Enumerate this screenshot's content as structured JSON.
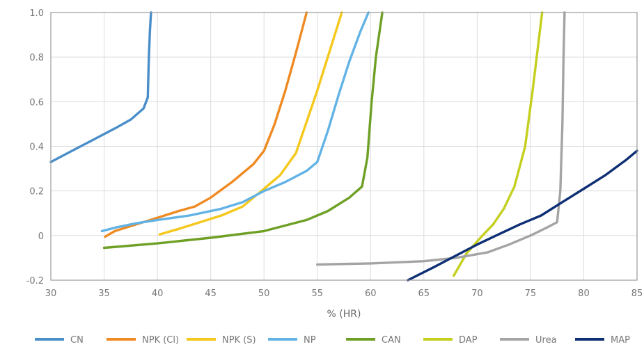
{
  "chart_data": {
    "type": "line",
    "xlabel": "% (HR)",
    "xlim": [
      30,
      85
    ],
    "ylim": [
      -0.2,
      1.0
    ],
    "x_ticks": [
      30,
      35,
      40,
      45,
      50,
      55,
      60,
      65,
      70,
      75,
      80,
      85
    ],
    "x_tick_labels": [
      "30",
      "35",
      "40",
      "45",
      "50",
      "55",
      "60",
      "65",
      "70",
      "75",
      "80",
      "85"
    ],
    "y_ticks": [
      -0.2,
      0,
      0.2,
      0.4,
      0.6,
      0.8,
      1.0
    ],
    "y_tick_labels": [
      "-0.2",
      "0",
      "0.2",
      "0.4",
      "0.6",
      "0.8",
      "1.0"
    ],
    "grid": true,
    "legend_position": "bottom",
    "series": [
      {
        "name": "CN",
        "color": "#4a8ec9",
        "x": [
          30,
          32,
          34,
          36,
          37.5,
          38.7,
          39.1,
          39.2,
          39.3,
          39.4
        ],
        "y": [
          0.33,
          0.38,
          0.43,
          0.48,
          0.52,
          0.57,
          0.62,
          0.8,
          0.92,
          1.0
        ]
      },
      {
        "name": "NPK (Cl)",
        "color": "#ef8a22",
        "x": [
          35.1,
          36,
          38,
          40,
          42,
          43.5,
          45,
          47,
          49,
          50,
          51,
          52,
          53,
          54
        ],
        "y": [
          -0.005,
          0.02,
          0.05,
          0.08,
          0.11,
          0.13,
          0.17,
          0.24,
          0.32,
          0.38,
          0.5,
          0.65,
          0.82,
          1.0
        ]
      },
      {
        "name": "NPK (S)",
        "color": "#f4c81c",
        "x": [
          40.2,
          42,
          44,
          46,
          48,
          50,
          51.5,
          53,
          55,
          57.3
        ],
        "y": [
          0.005,
          0.03,
          0.06,
          0.09,
          0.13,
          0.21,
          0.27,
          0.37,
          0.65,
          1.0
        ]
      },
      {
        "name": "NP",
        "color": "#62b3e5",
        "x": [
          34.8,
          36,
          38,
          40,
          43,
          46,
          48,
          50,
          52,
          54,
          55,
          56,
          57,
          58,
          59,
          59.8
        ],
        "y": [
          0.02,
          0.035,
          0.055,
          0.07,
          0.09,
          0.12,
          0.15,
          0.2,
          0.24,
          0.29,
          0.33,
          0.47,
          0.63,
          0.78,
          0.91,
          1.0
        ]
      },
      {
        "name": "CAN",
        "color": "#6ea026",
        "x": [
          35,
          40,
          45,
          50,
          54,
          56,
          58,
          59.2,
          59.7,
          60.1,
          60.5,
          61.1
        ],
        "y": [
          -0.055,
          -0.035,
          -0.01,
          0.02,
          0.07,
          0.11,
          0.17,
          0.22,
          0.35,
          0.6,
          0.8,
          1.0
        ]
      },
      {
        "name": "DAP",
        "color": "#c5cf1e",
        "x": [
          67.8,
          69,
          70.5,
          71.5,
          72.5,
          73.5,
          74.5,
          75.2,
          76.1
        ],
        "y": [
          -0.18,
          -0.08,
          0.0,
          0.05,
          0.12,
          0.22,
          0.4,
          0.65,
          1.0
        ]
      },
      {
        "name": "Urea",
        "color": "#a4a4a4",
        "x": [
          55,
          60,
          65,
          68,
          71,
          73,
          75,
          76.5,
          77.5,
          77.8,
          78,
          78.1,
          78.2
        ],
        "y": [
          -0.13,
          -0.125,
          -0.115,
          -0.1,
          -0.075,
          -0.04,
          0.0,
          0.035,
          0.06,
          0.2,
          0.5,
          0.8,
          1.0
        ]
      },
      {
        "name": "MAP",
        "color": "#0e2f74",
        "x": [
          63.5,
          66,
          68,
          70,
          72,
          74,
          76,
          78,
          80,
          82,
          84,
          85
        ],
        "y": [
          -0.2,
          -0.14,
          -0.09,
          -0.04,
          0.005,
          0.05,
          0.09,
          0.15,
          0.21,
          0.27,
          0.34,
          0.38
        ]
      }
    ]
  }
}
